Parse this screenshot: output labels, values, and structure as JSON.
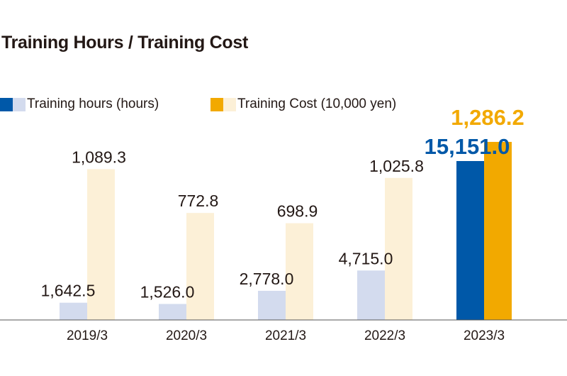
{
  "colors": {
    "hours_light": "#d3dbee",
    "hours_dark": "#0058a8",
    "cost_light": "#fcf0d7",
    "cost_dark": "#f2a900",
    "axis": "#555555",
    "text": "#231815"
  },
  "chart_data": {
    "type": "bar",
    "title": "Training Hours / Training Cost",
    "categories": [
      "2019/3",
      "2020/3",
      "2021/3",
      "2022/3",
      "2023/3"
    ],
    "series": [
      {
        "name": "Training hours (hours)",
        "values": [
          1642.5,
          1526.0,
          2778.0,
          4715.0,
          15151.0
        ],
        "labels": [
          "1,642.5",
          "1,526.0",
          "2,778.0",
          "4,715.0",
          "15,151.0"
        ]
      },
      {
        "name": "Training Cost (10,000 yen)",
        "values": [
          1089.3,
          772.8,
          698.9,
          1025.8,
          1286.2
        ],
        "labels": [
          "1,089.3",
          "772.8",
          "698.9",
          "1,025.8",
          "1,286.2"
        ]
      }
    ],
    "legend_position": "top-left",
    "gridlines": false,
    "highlighted_category": "2023/3"
  }
}
